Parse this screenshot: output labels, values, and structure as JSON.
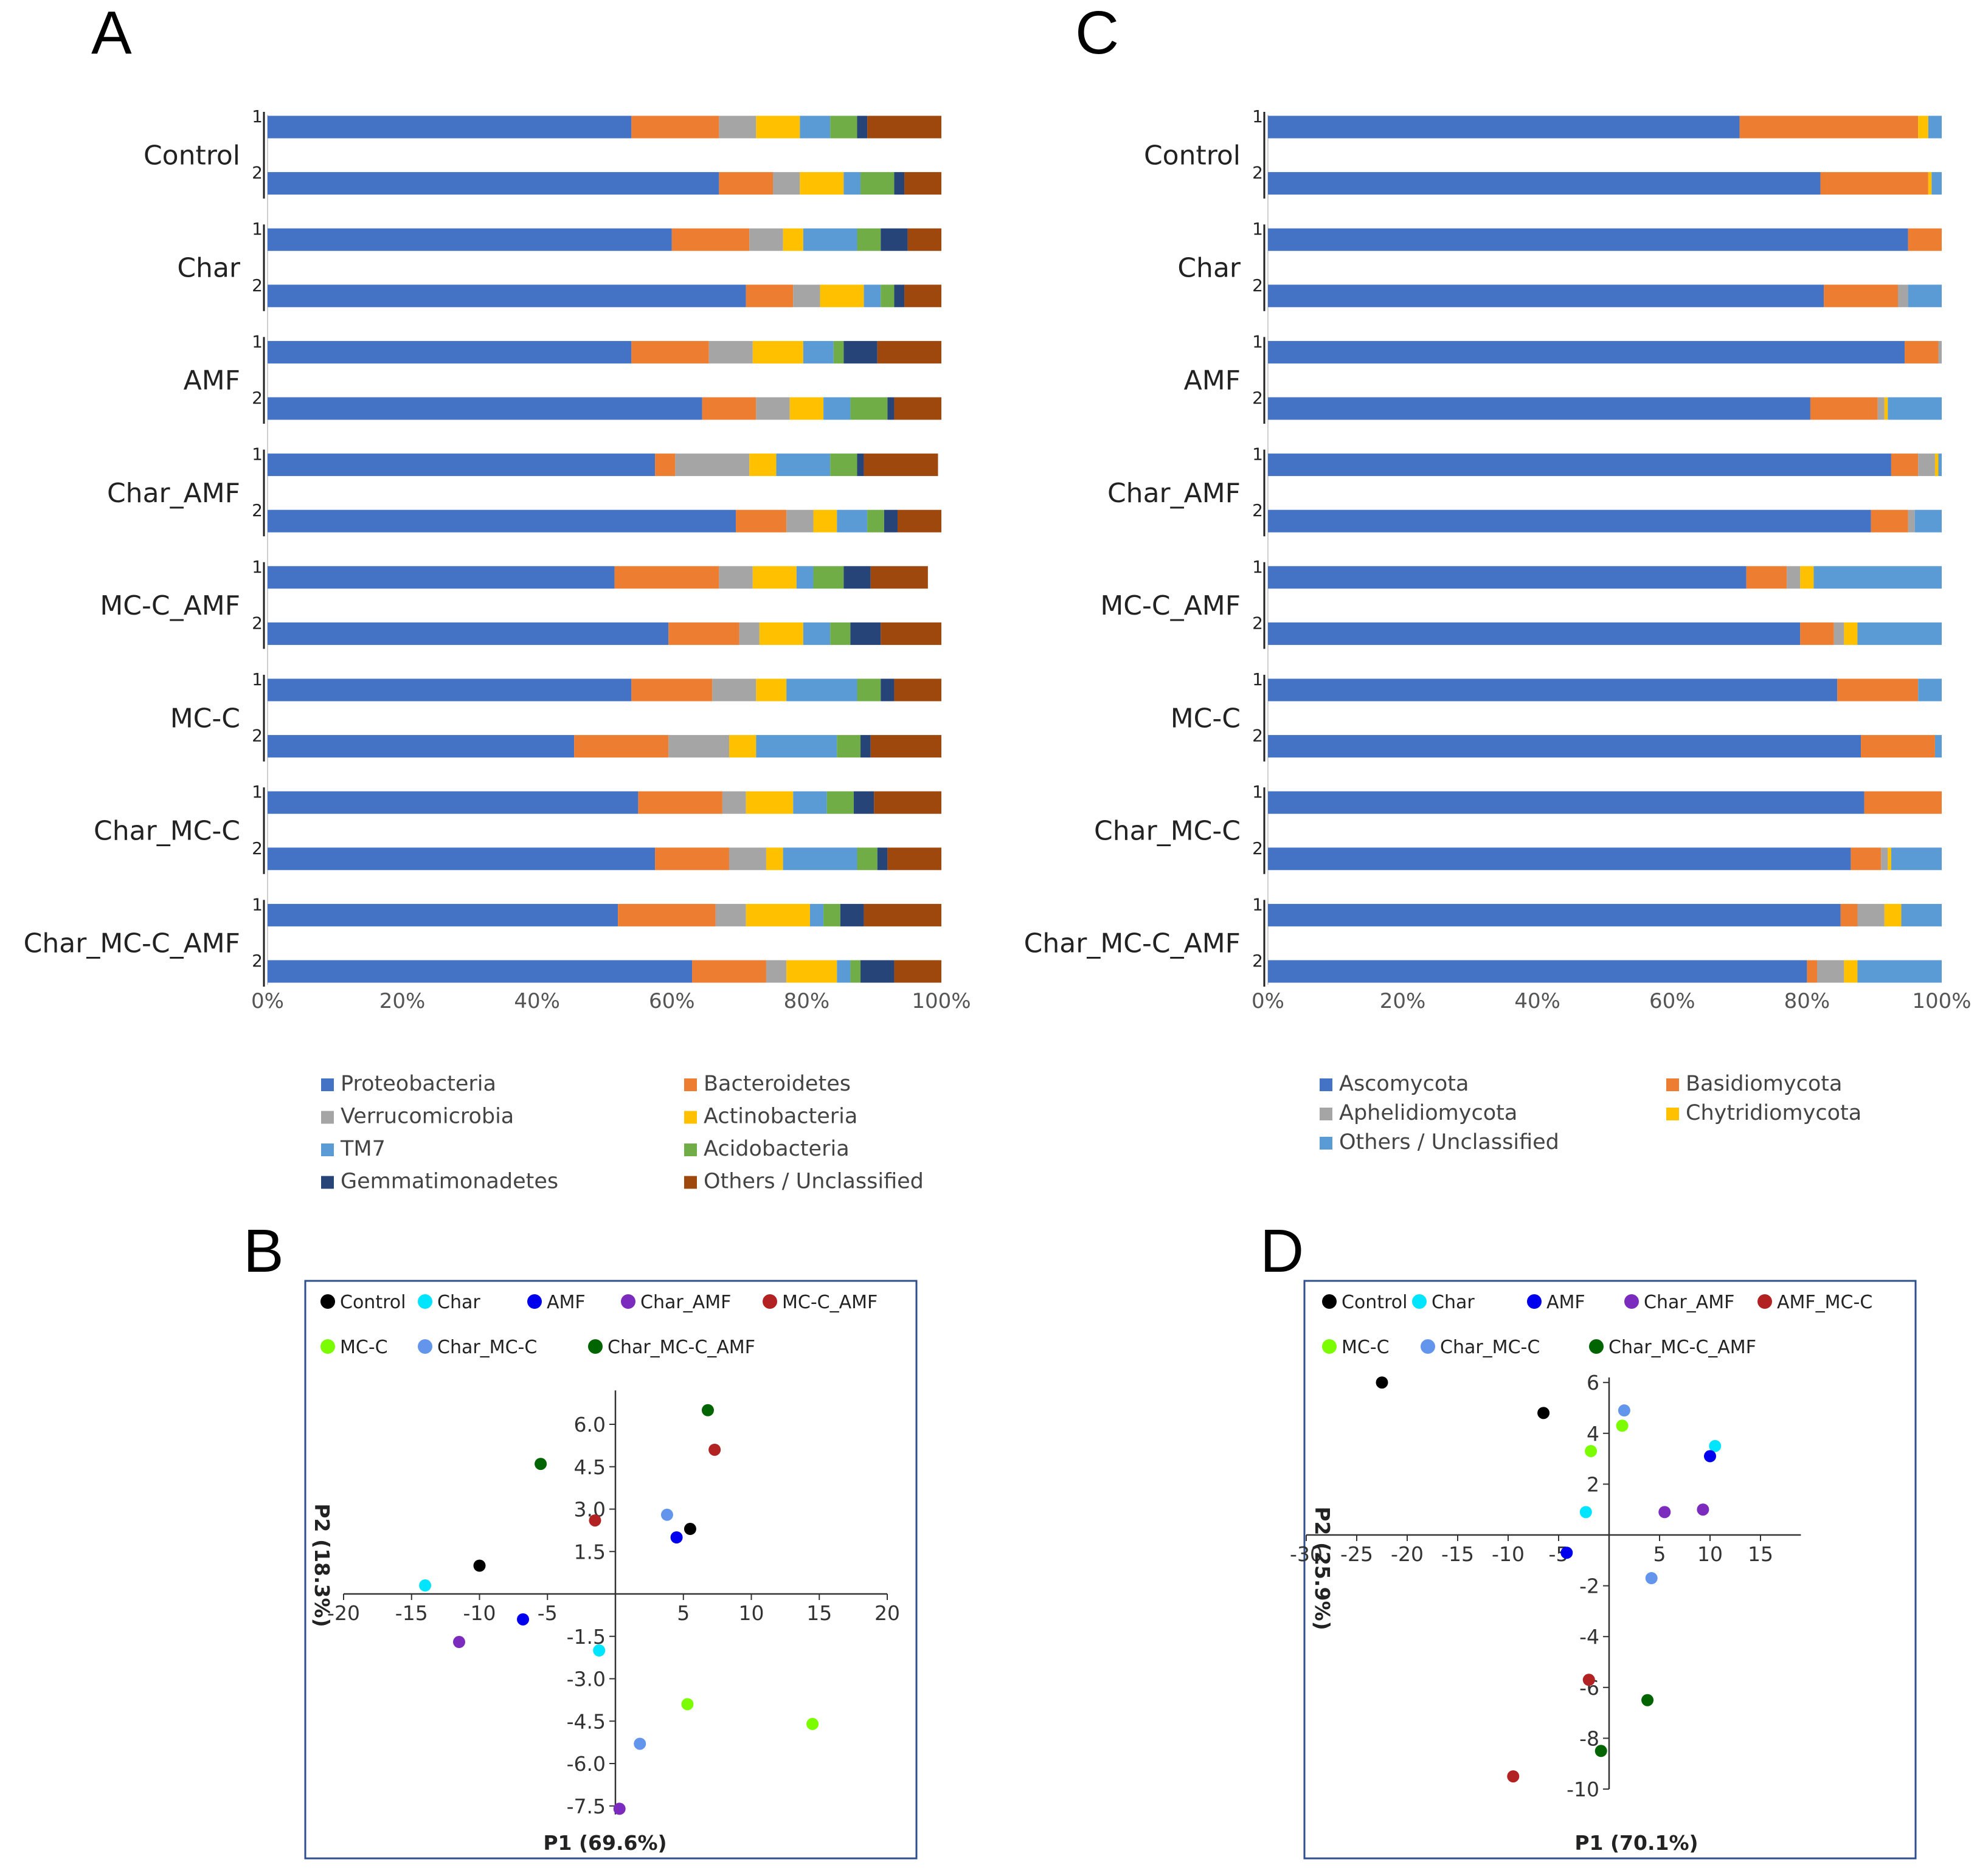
{
  "chart_data": [
    {
      "panel": "A",
      "type": "bar",
      "orientation": "horizontal-stacked-percent",
      "groups": [
        "Control",
        "Char",
        "AMF",
        "Char_AMF",
        "MC-C_AMF",
        "MC-C",
        "Char_MC-C",
        "Char_MC-C_AMF"
      ],
      "replicates": [
        "1",
        "2"
      ],
      "x_ticks": [
        "0%",
        "20%",
        "40%",
        "60%",
        "80%",
        "100%"
      ],
      "xlim": [
        0,
        100
      ],
      "series": [
        {
          "name": "Proteobacteria",
          "color": "#4472C4",
          "values": [
            54,
            67,
            60,
            71,
            54,
            64.5,
            57.5,
            69.5,
            51.5,
            59.5,
            54,
            45.5,
            55,
            57.5,
            52,
            63
          ]
        },
        {
          "name": "Bacteroidetes",
          "color": "#ED7D31",
          "values": [
            13,
            8,
            11.5,
            7,
            11.5,
            8,
            3,
            7.5,
            15.5,
            10.5,
            12,
            14,
            12.5,
            11,
            14.5,
            11
          ]
        },
        {
          "name": "Verrucomicrobia",
          "color": "#A5A5A5",
          "values": [
            5.5,
            4,
            5,
            4,
            6.5,
            5,
            11,
            4,
            5,
            3,
            6.5,
            9,
            3.5,
            5.5,
            4.5,
            3
          ]
        },
        {
          "name": "Actinobacteria",
          "color": "#FFC000",
          "values": [
            6.5,
            6.5,
            3,
            6.5,
            7.5,
            5,
            4,
            3.5,
            6.5,
            6.5,
            4.5,
            4,
            7,
            2.5,
            9.5,
            7.5
          ]
        },
        {
          "name": "TM7",
          "color": "#5B9BD5",
          "values": [
            4.5,
            2.5,
            8,
            2.5,
            4.5,
            4,
            8,
            4.5,
            2.5,
            4,
            10.5,
            12,
            5,
            11,
            2,
            2
          ]
        },
        {
          "name": "Acidobacteria",
          "color": "#70AD47",
          "values": [
            4,
            5,
            3.5,
            2,
            1.5,
            5.5,
            4,
            2.5,
            4.5,
            3,
            3.5,
            3.5,
            4,
            3,
            2.5,
            1.5
          ]
        },
        {
          "name": "Gemmatimonadetes",
          "color": "#264478",
          "values": [
            1.5,
            1.5,
            4,
            1.5,
            5,
            1,
            1,
            2,
            4,
            4.5,
            2,
            1.5,
            3,
            1.5,
            3.5,
            5
          ]
        },
        {
          "name": "Others / Unclassified",
          "color": "#9E480E",
          "values": [
            11,
            5.5,
            5,
            5.5,
            9.5,
            7,
            11,
            6.5,
            8.5,
            9,
            7,
            10.5,
            10,
            8,
            11.5,
            7
          ]
        }
      ],
      "legend": "bottom"
    },
    {
      "panel": "C",
      "type": "bar",
      "orientation": "horizontal-stacked-percent",
      "groups": [
        "Control",
        "Char",
        "AMF",
        "Char_AMF",
        "MC-C_AMF",
        "MC-C",
        "Char_MC-C",
        "Char_MC-C_AMF"
      ],
      "replicates": [
        "1",
        "2"
      ],
      "x_ticks": [
        "0%",
        "20%",
        "40%",
        "60%",
        "80%",
        "100%"
      ],
      "xlim": [
        0,
        100
      ],
      "series": [
        {
          "name": "Ascomycota",
          "color": "#4472C4",
          "values": [
            70,
            82,
            95,
            82.5,
            94.5,
            80.5,
            92.5,
            89.5,
            71,
            79,
            84.5,
            88,
            88.5,
            86.5,
            85,
            80
          ]
        },
        {
          "name": "Basidiomycota",
          "color": "#ED7D31",
          "values": [
            26.5,
            16,
            5,
            11,
            5,
            10,
            4,
            5.5,
            6,
            5,
            12,
            11,
            11.5,
            4.5,
            2.5,
            1.5
          ]
        },
        {
          "name": "Aphelidiomycota",
          "color": "#A5A5A5",
          "values": [
            0,
            0,
            0,
            1.5,
            0.5,
            1,
            2.5,
            1,
            2,
            1.5,
            0,
            0,
            0,
            1,
            4,
            4
          ]
        },
        {
          "name": "Chytridiomycota",
          "color": "#FFC000",
          "values": [
            1.5,
            0.5,
            0,
            0,
            0,
            0.5,
            0.5,
            0,
            2,
            2,
            0,
            0,
            0,
            0.5,
            2.5,
            2
          ]
        },
        {
          "name": "Others / Unclassified",
          "color": "#5B9BD5",
          "values": [
            2,
            1.5,
            0,
            5,
            0,
            8,
            0.5,
            4,
            19,
            12.5,
            3.5,
            1,
            0,
            7.5,
            6,
            12.5
          ]
        }
      ],
      "legend": "bottom"
    },
    {
      "panel": "B",
      "type": "scatter",
      "xlabel": "P1 (69.6%)",
      "ylabel": "P2 (18.3%)",
      "xlim": [
        -20,
        20
      ],
      "ylim": [
        -7.8,
        7.2
      ],
      "x_ticks": [
        "-20",
        "-15",
        "-10",
        "-5",
        "5",
        "10",
        "15",
        "20"
      ],
      "y_ticks": [
        "6.0",
        "4.5",
        "3.0",
        "1.5",
        "-1.5",
        "-3.0",
        "-4.5",
        "-6.0",
        "-7.5"
      ],
      "legend": "top",
      "series": [
        {
          "name": "Control",
          "color": "#000000",
          "points": [
            [
              -10,
              1
            ],
            [
              5.5,
              2.3
            ]
          ]
        },
        {
          "name": "Char",
          "color": "#00E5FF",
          "points": [
            [
              -14,
              0.3
            ],
            [
              -1.2,
              -2
            ]
          ]
        },
        {
          "name": "AMF",
          "color": "#0000EE",
          "points": [
            [
              -6.8,
              -0.9
            ],
            [
              4.5,
              2
            ]
          ]
        },
        {
          "name": "Char_AMF",
          "color": "#7B2CBF",
          "points": [
            [
              -11.5,
              -1.7
            ],
            [
              0.3,
              -7.6
            ]
          ]
        },
        {
          "name": "MC-C_AMF",
          "color": "#B22222",
          "points": [
            [
              -1.5,
              2.6
            ],
            [
              7.3,
              5.1
            ]
          ]
        },
        {
          "name": "MC-C",
          "color": "#7CFC00",
          "points": [
            [
              5.3,
              -3.9
            ],
            [
              14.5,
              -4.6
            ]
          ]
        },
        {
          "name": "Char_MC-C",
          "color": "#6495ED",
          "points": [
            [
              3.8,
              2.8
            ],
            [
              1.8,
              -5.3
            ]
          ]
        },
        {
          "name": "Char_MC-C_AMF",
          "color": "#006400",
          "points": [
            [
              -5.5,
              4.6
            ],
            [
              6.8,
              6.5
            ]
          ]
        }
      ]
    },
    {
      "panel": "D",
      "type": "scatter",
      "xlabel": "P1 (70.1%)",
      "ylabel": "P2 (25.9%)",
      "xlim": [
        -30,
        19
      ],
      "ylim": [
        -10,
        6.2
      ],
      "x_ticks": [
        "-30",
        "-25",
        "-20",
        "-15",
        "-10",
        "-5",
        "5",
        "10",
        "15"
      ],
      "y_ticks": [
        "6",
        "4",
        "2",
        "-2",
        "-4",
        "-6",
        "-8",
        "-10"
      ],
      "legend": "top",
      "series": [
        {
          "name": "Control",
          "color": "#000000",
          "points": [
            [
              -22.5,
              6
            ],
            [
              -6.5,
              4.8
            ]
          ]
        },
        {
          "name": "Char",
          "color": "#00E5FF",
          "points": [
            [
              -2.3,
              0.9
            ],
            [
              10.5,
              3.5
            ]
          ]
        },
        {
          "name": "AMF",
          "color": "#0000EE",
          "points": [
            [
              -4.2,
              -0.7
            ],
            [
              10,
              3.1
            ]
          ]
        },
        {
          "name": "Char_AMF",
          "color": "#7B2CBF",
          "points": [
            [
              5.5,
              0.9
            ],
            [
              9.3,
              1
            ]
          ]
        },
        {
          "name": "AMF_MC-C",
          "color": "#B22222",
          "points": [
            [
              -2,
              -5.7
            ],
            [
              -9.5,
              -9.5
            ]
          ]
        },
        {
          "name": "MC-C",
          "color": "#7CFC00",
          "points": [
            [
              -1.8,
              3.3
            ],
            [
              1.3,
              4.3
            ]
          ]
        },
        {
          "name": "Char_MC-C",
          "color": "#6495ED",
          "points": [
            [
              1.5,
              4.9
            ],
            [
              4.2,
              -1.7
            ]
          ]
        },
        {
          "name": "Char_MC-C_AMF",
          "color": "#006400",
          "points": [
            [
              3.8,
              -6.5
            ],
            [
              -0.8,
              -8.5
            ]
          ]
        }
      ]
    }
  ]
}
